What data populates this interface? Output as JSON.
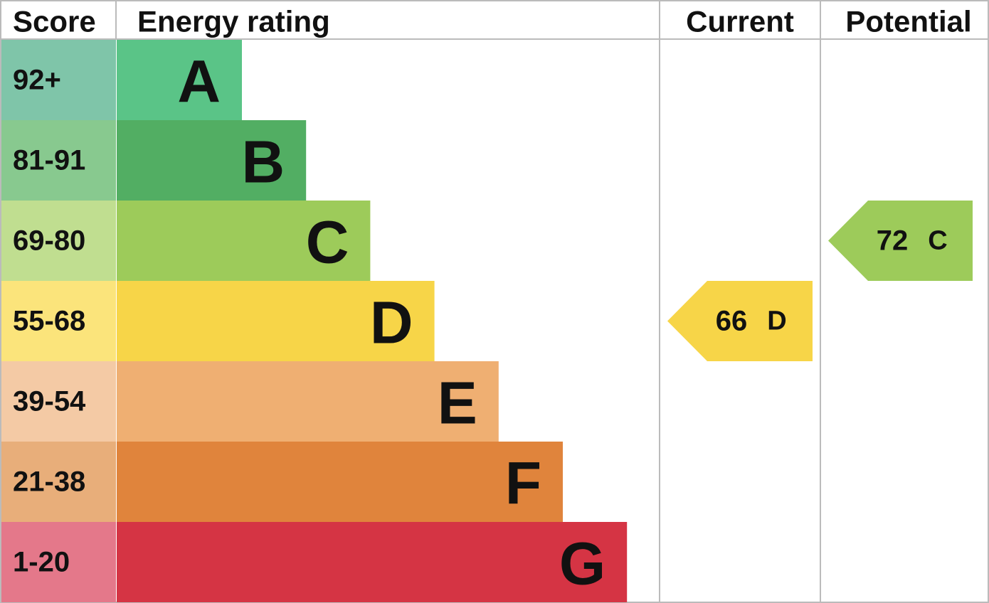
{
  "header": {
    "score": "Score",
    "rating": "Energy rating",
    "current": "Current",
    "potential": "Potential"
  },
  "bands": [
    {
      "range": "92+",
      "letter": "A",
      "color": "#5ac487",
      "score_color": "#7fc5a9"
    },
    {
      "range": "81-91",
      "letter": "B",
      "color": "#52ae63",
      "score_color": "#88c98f"
    },
    {
      "range": "69-80",
      "letter": "C",
      "color": "#9dcb5a",
      "score_color": "#c0de90"
    },
    {
      "range": "55-68",
      "letter": "D",
      "color": "#f7d548",
      "score_color": "#fbe47b"
    },
    {
      "range": "39-54",
      "letter": "E",
      "color": "#efaf72",
      "score_color": "#f4caa5"
    },
    {
      "range": "21-38",
      "letter": "F",
      "color": "#e0843c",
      "score_color": "#e8ae7a"
    },
    {
      "range": "1-20",
      "letter": "G",
      "color": "#d53444",
      "score_color": "#e4788a"
    }
  ],
  "current": {
    "score": 66,
    "letter": "D"
  },
  "potential": {
    "score": 72,
    "letter": "C"
  }
}
